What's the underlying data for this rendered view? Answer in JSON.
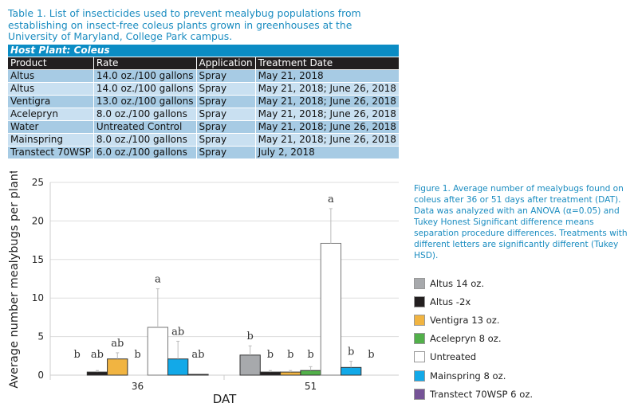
{
  "table": {
    "caption": "Table 1. List of insecticides used to prevent mealybug populations from establishing on insect-free coleus plants grown in greenhouses at the University of Maryland, College Park campus.",
    "host_label": "Host Plant: Coleus",
    "headers": [
      "Product",
      "Rate",
      "Application",
      "Treatment Date"
    ],
    "rows": [
      [
        "Altus",
        "14.0 oz./100 gallons",
        "Spray",
        "May 21, 2018"
      ],
      [
        "Altus",
        "14.0 oz./100 gallons",
        "Spray",
        "May 21, 2018; June 26, 2018"
      ],
      [
        "Ventigra",
        "13.0 oz./100 gallons",
        "Spray",
        "May 21, 2018; June 26, 2018"
      ],
      [
        "Acelepryn",
        "8.0 oz./100 gallons",
        "Spray",
        "May 21, 2018; June 26, 2018"
      ],
      [
        "Water",
        "Untreated Control",
        "Spray",
        "May 21, 2018; June 26, 2018"
      ],
      [
        "Mainspring",
        "8.0 oz./100 gallons",
        "Spray",
        "May 21, 2018; June 26, 2018"
      ],
      [
        "Transtect 70WSP",
        "6.0 oz./100 gallons",
        "Spray",
        "July 2, 2018"
      ]
    ]
  },
  "figure_caption": "Figure 1. Average number of mealybugs found on coleus after 36 or 51 days after treatment (DAT). Data was analyzed with an ANOVA (α=0.05) and Tukey Honest Significant difference means separation procedure differences. Treatments with different letters are significantly different (Tukey HSD).",
  "colors": {
    "caption": "#1a8cc0",
    "host_band": "#0b8cc4",
    "row_dark": "#a7cbe4",
    "row_light": "#c9e0f1"
  },
  "chart_data": {
    "type": "bar",
    "xlabel": "DAT",
    "ylabel": "Average number mealybugs per plant",
    "ylim": [
      0,
      25
    ],
    "yticks": [
      "0",
      "5",
      "10",
      "15",
      "20",
      "25"
    ],
    "categories": [
      "36",
      "51"
    ],
    "grid": true,
    "legend_position": "right",
    "series": [
      {
        "name": "Altus 14 oz.",
        "color": "#a7a9ac",
        "values": [
          0,
          2.6
        ],
        "error_top": [
          null,
          3.8
        ],
        "letters": [
          "b",
          "b"
        ]
      },
      {
        "name": "Altus -2x",
        "color": "#231f20",
        "values": [
          0.4,
          0.4
        ],
        "error_top": [
          0.6,
          0.6
        ],
        "letters": [
          "ab",
          "b"
        ]
      },
      {
        "name": "Ventigra 13 oz.",
        "color": "#f1b441",
        "values": [
          2.1,
          0.4
        ],
        "error_top": [
          2.9,
          0.6
        ],
        "letters": [
          "ab",
          "b"
        ]
      },
      {
        "name": "Acelepryn 8 oz.",
        "color": "#52b04a",
        "values": [
          0,
          0.6
        ],
        "error_top": [
          null,
          1.1
        ],
        "letters": [
          "b",
          "b"
        ]
      },
      {
        "name": "Untreated",
        "color": "#ffffff",
        "values": [
          6.2,
          17.1
        ],
        "error_top": [
          11.2,
          21.6
        ],
        "letters": [
          "a",
          "a"
        ]
      },
      {
        "name": "Mainspring 8 oz.",
        "color": "#12a9e8",
        "values": [
          2.1,
          1.0
        ],
        "error_top": [
          4.4,
          1.8
        ],
        "letters": [
          "ab",
          "b"
        ]
      },
      {
        "name": "Transtect 70WSP 6 oz.",
        "color": "#765397",
        "values": [
          0.1,
          0
        ],
        "error_top": [
          null,
          null
        ],
        "letters": [
          "ab",
          "b"
        ]
      }
    ]
  }
}
